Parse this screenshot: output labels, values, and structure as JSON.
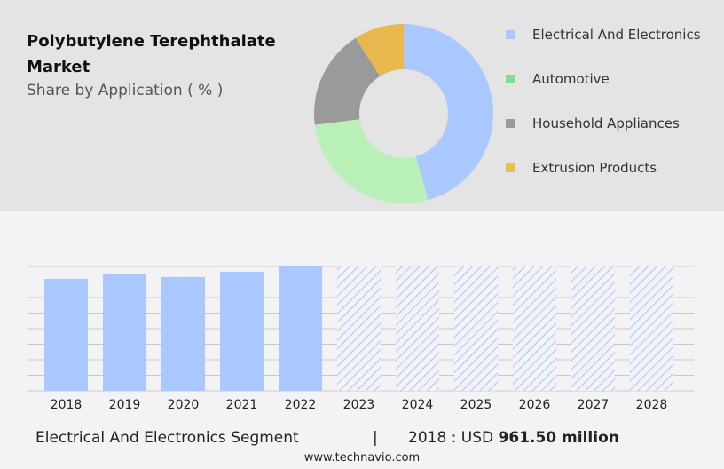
{
  "header": {
    "title": "Polybutylene Terephthalate Market",
    "subtitle": "Share by Application ( % )"
  },
  "chart_data": [
    {
      "type": "pie",
      "donut": true,
      "categories": [
        "Electrical And Electronics",
        "Automotive",
        "Household Appliances",
        "Extrusion Products"
      ],
      "values": [
        45.6,
        27.4,
        18,
        9
      ],
      "colors": [
        "#a8c8ff",
        "#b8f0b8",
        "#9a9a9a",
        "#e8b84e"
      ],
      "legend_colors": [
        "#a8c8ff",
        "#7ee08e",
        "#9a9a9a",
        "#e8c050"
      ],
      "legend_position": "right"
    },
    {
      "type": "bar",
      "categories": [
        "2018",
        "2019",
        "2020",
        "2021",
        "2022",
        "2023",
        "2024",
        "2025",
        "2026",
        "2027",
        "2028"
      ],
      "values": [
        961.5,
        1000,
        977,
        1023,
        1068,
        null,
        null,
        null,
        null,
        null,
        null
      ],
      "forecast_from": "2023",
      "color": "#a8c8ff",
      "grid": true,
      "ylim": [
        0,
        1068
      ]
    }
  ],
  "footer": {
    "segment": "Electrical And Electronics Segment",
    "divider": "|",
    "year_label": "2018 : USD",
    "value": "961.50 million",
    "site": "www.technavio.com"
  }
}
